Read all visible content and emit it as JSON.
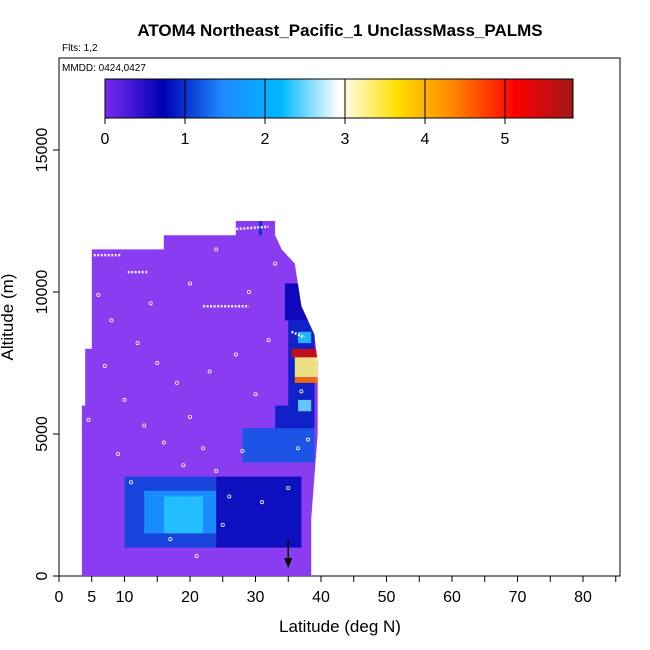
{
  "chart_data": {
    "type": "heatmap",
    "title": "ATOM4 Northeast_Pacific_1 UnclassMass_PALMS",
    "flights_label": "Flts: 1,2",
    "dates_label": "MMDD: 0424,0427",
    "xlabel": "Latitude (deg N)",
    "ylabel": "Altitude (m)",
    "xlim": [
      0,
      85
    ],
    "ylim": [
      0,
      17500
    ],
    "x_ticks": [
      0,
      5,
      10,
      20,
      30,
      40,
      50,
      60,
      70,
      80
    ],
    "x_ticks_labels": [
      "0",
      "5",
      "10",
      "20",
      "30",
      "40",
      "50",
      "60",
      "70",
      "80"
    ],
    "x_minor_ticks": [
      15,
      25,
      35,
      45,
      55,
      65,
      75,
      85
    ],
    "y_ticks": [
      0,
      5000,
      10000,
      15000
    ],
    "y_ticks_labels": [
      "0",
      "5000",
      "10000",
      "15000"
    ],
    "colorbar": {
      "range": [
        0,
        5.85
      ],
      "ticks": [
        0,
        1,
        2,
        3,
        4,
        5
      ],
      "ticks_labels": [
        "0",
        "1",
        "2",
        "3",
        "4",
        "5"
      ],
      "colors": [
        "#7a2bf0",
        "#0000b4",
        "#1e88ff",
        "#00b8ff",
        "#ffffff",
        "#ffe000",
        "#ff8000",
        "#ff0000",
        "#a01818"
      ]
    },
    "background_color": "#8a3cf0",
    "envelope": [
      [
        3.5,
        0
      ],
      [
        3.5,
        3500
      ],
      [
        3.5,
        6000
      ],
      [
        4,
        6000
      ],
      [
        4,
        8000
      ],
      [
        5,
        8000
      ],
      [
        5,
        11500
      ],
      [
        16,
        11500
      ],
      [
        16,
        12000
      ],
      [
        27,
        12000
      ],
      [
        27,
        12500
      ],
      [
        33,
        12500
      ],
      [
        33,
        12000
      ],
      [
        34,
        11500
      ],
      [
        36,
        11000
      ],
      [
        37,
        9500
      ],
      [
        38,
        9000
      ],
      [
        39,
        8500
      ],
      [
        39.5,
        7500
      ],
      [
        39.5,
        5000
      ],
      [
        39,
        3500
      ],
      [
        38.5,
        2000
      ],
      [
        38.5,
        0
      ]
    ],
    "cells": [
      {
        "lat": [
          10,
          24
        ],
        "alt": [
          1000,
          3500
        ],
        "value": 1.1
      },
      {
        "lat": [
          13,
          24
        ],
        "alt": [
          1500,
          3000
        ],
        "value": 1.6
      },
      {
        "lat": [
          16,
          22
        ],
        "alt": [
          1500,
          2800
        ],
        "value": 2.3
      },
      {
        "lat": [
          24,
          37
        ],
        "alt": [
          1000,
          3500
        ],
        "value": 0.8
      },
      {
        "lat": [
          28,
          39
        ],
        "alt": [
          4000,
          5200
        ],
        "value": 1.2
      },
      {
        "lat": [
          33,
          39
        ],
        "alt": [
          5200,
          6000
        ],
        "value": 0.9
      },
      {
        "lat": [
          35,
          39
        ],
        "alt": [
          6000,
          9000
        ],
        "value": 0.9
      },
      {
        "lat": [
          34.5,
          38.5
        ],
        "alt": [
          9000,
          10300
        ],
        "value": 0.7
      },
      {
        "lat": [
          35.5,
          39.5
        ],
        "alt": [
          7700,
          8000
        ],
        "value": 5.5
      },
      {
        "lat": [
          36,
          39.5
        ],
        "alt": [
          7000,
          7700
        ],
        "value": 3.3
      },
      {
        "lat": [
          36,
          39.5
        ],
        "alt": [
          6800,
          7000
        ],
        "value": 4.5
      },
      {
        "lat": [
          36.5,
          38.5
        ],
        "alt": [
          5800,
          6200
        ],
        "value": 2.5
      },
      {
        "lat": [
          36.5,
          38.5
        ],
        "alt": [
          8200,
          8600
        ],
        "value": 2.3
      },
      {
        "lat": [
          30.5,
          31
        ],
        "alt": [
          12000,
          12500
        ],
        "value": 1.0
      }
    ],
    "flight_tracks": [
      {
        "lat": [
          5.3,
          9.5
        ],
        "alt": [
          11300,
          11300
        ]
      },
      {
        "lat": [
          10.5,
          13.5
        ],
        "alt": [
          10700,
          10700
        ]
      },
      {
        "lat": [
          22,
          29
        ],
        "alt": [
          9500,
          9500
        ]
      },
      {
        "lat": [
          26,
          32
        ],
        "alt": [
          12200,
          12300
        ]
      },
      {
        "lat": [
          35.5,
          37.5
        ],
        "alt": [
          8600,
          8400
        ]
      }
    ],
    "sample_points": [
      [
        8,
        9000
      ],
      [
        12,
        8200
      ],
      [
        15,
        7500
      ],
      [
        18,
        6800
      ],
      [
        20,
        5600
      ],
      [
        22,
        4500
      ],
      [
        24,
        3700
      ],
      [
        26,
        2800
      ],
      [
        10,
        6200
      ],
      [
        13,
        5300
      ],
      [
        16,
        4700
      ],
      [
        19,
        3900
      ],
      [
        7,
        7400
      ],
      [
        9,
        4300
      ],
      [
        11,
        3300
      ],
      [
        17,
        1300
      ],
      [
        21,
        700
      ],
      [
        25,
        1800
      ],
      [
        28,
        4400
      ],
      [
        30,
        6400
      ],
      [
        32,
        8300
      ],
      [
        29,
        10000
      ],
      [
        33,
        11000
      ],
      [
        23,
        7200
      ],
      [
        27,
        7800
      ],
      [
        31,
        2600
      ],
      [
        35,
        3100
      ],
      [
        14,
        9600
      ],
      [
        20,
        10300
      ],
      [
        6,
        9900
      ],
      [
        4.5,
        5500
      ],
      [
        24,
        11500
      ],
      [
        38,
        4800
      ],
      [
        36.5,
        4500
      ],
      [
        37,
        6500
      ]
    ],
    "arrow": {
      "lat": 35,
      "alt": 700
    }
  }
}
